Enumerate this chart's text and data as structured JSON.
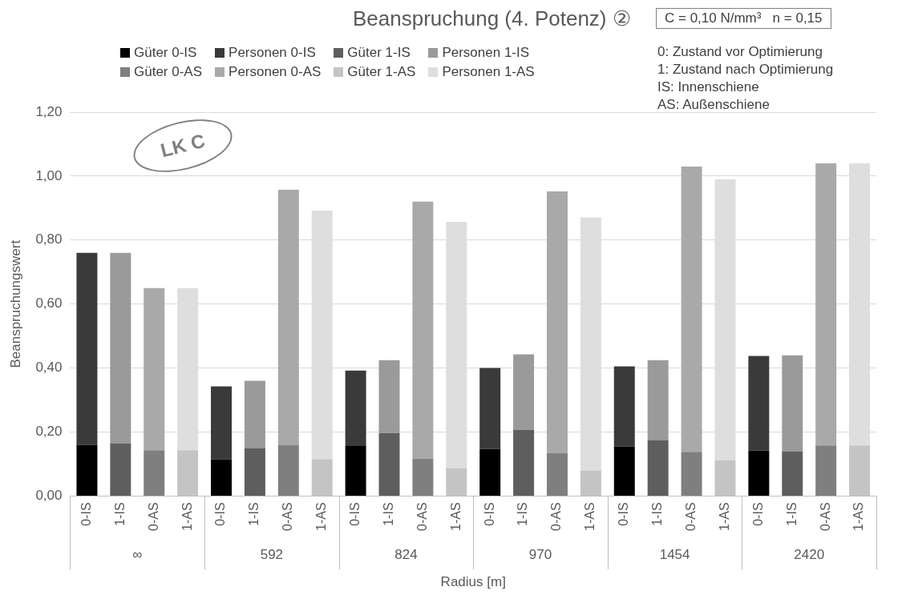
{
  "chart_data": {
    "type": "bar",
    "stacked": true,
    "title": "Beanspruchung (4. Potenz) ②",
    "xlabel": "Radius [m]",
    "ylabel": "Beanspruchungswert",
    "categories": [
      "0-IS",
      "1-IS",
      "0-AS",
      "1-AS",
      "0-IS",
      "1-IS",
      "0-AS",
      "1-AS",
      "0-IS",
      "1-IS",
      "0-AS",
      "1-AS",
      "0-IS",
      "1-IS",
      "0-AS",
      "1-AS",
      "0-IS",
      "1-IS",
      "0-AS",
      "1-AS",
      "0-IS",
      "1-IS",
      "0-AS",
      "1-AS"
    ],
    "series": [
      {
        "name": "Güter 0-IS",
        "color": "#000000",
        "values": [
          0.16,
          null,
          null,
          null,
          0.115,
          null,
          null,
          null,
          0.158,
          null,
          null,
          null,
          0.147,
          null,
          null,
          null,
          0.155,
          null,
          null,
          null,
          0.142,
          null,
          null,
          null
        ]
      },
      {
        "name": "Personen 0-IS",
        "color": "#3a3a3a",
        "values": [
          0.6,
          null,
          null,
          null,
          0.228,
          null,
          null,
          null,
          0.234,
          null,
          null,
          null,
          0.253,
          null,
          null,
          null,
          0.25,
          null,
          null,
          null,
          0.296,
          null,
          null,
          null
        ]
      },
      {
        "name": "Güter 1-IS",
        "color": "#5e5e5e",
        "values": [
          null,
          0.165,
          null,
          null,
          null,
          0.15,
          null,
          null,
          null,
          0.197,
          null,
          null,
          null,
          0.207,
          null,
          null,
          null,
          0.175,
          null,
          null,
          null,
          0.14,
          null,
          null
        ]
      },
      {
        "name": "Personen 1-IS",
        "color": "#9a9a9a",
        "values": [
          null,
          0.595,
          null,
          null,
          null,
          0.21,
          null,
          null,
          null,
          0.228,
          null,
          null,
          null,
          0.236,
          null,
          null,
          null,
          0.25,
          null,
          null,
          null,
          0.3,
          null,
          null
        ]
      },
      {
        "name": "Güter 0-AS",
        "color": "#7f7f7f",
        "values": [
          null,
          null,
          0.143,
          null,
          null,
          null,
          0.16,
          null,
          null,
          null,
          0.117,
          null,
          null,
          null,
          0.134,
          null,
          null,
          null,
          0.138,
          null,
          null,
          null,
          0.158,
          null
        ]
      },
      {
        "name": "Personen 0-AS",
        "color": "#a9a9a9",
        "values": [
          null,
          null,
          0.507,
          null,
          null,
          null,
          0.797,
          null,
          null,
          null,
          0.803,
          null,
          null,
          null,
          0.818,
          null,
          null,
          null,
          0.892,
          null,
          null,
          null,
          0.882,
          null
        ]
      },
      {
        "name": "Güter 1-AS",
        "color": "#c4c4c4",
        "values": [
          null,
          null,
          null,
          0.143,
          null,
          null,
          null,
          0.115,
          null,
          null,
          null,
          0.087,
          null,
          null,
          null,
          0.08,
          null,
          null,
          null,
          0.112,
          null,
          null,
          null,
          0.158
        ]
      },
      {
        "name": "Personen 1-AS",
        "color": "#dedede",
        "values": [
          null,
          null,
          null,
          0.507,
          null,
          null,
          null,
          0.777,
          null,
          null,
          null,
          0.77,
          null,
          null,
          null,
          0.791,
          null,
          null,
          null,
          0.878,
          null,
          null,
          null,
          0.882
        ]
      }
    ],
    "ylim": [
      0,
      1.2
    ],
    "yticks": [
      {
        "value": 0,
        "label": "0,00"
      },
      {
        "value": 0.2,
        "label": "0,20"
      },
      {
        "value": 0.4,
        "label": "0,40"
      },
      {
        "value": 0.6,
        "label": "0,60"
      },
      {
        "value": 0.8,
        "label": "0,80"
      },
      {
        "value": 1,
        "label": "1,00"
      },
      {
        "value": 1.2,
        "label": "1,20"
      }
    ],
    "grid": "y",
    "legend": "top",
    "annotations": [
      "C = 0,10 N/mm³   n = 0,15",
      "0: Zustand vor Optimierung",
      "1: Zustand nach Optimierung",
      "IS: Innenschiene",
      "AS: Außenschiene",
      "LK C",
      "∞",
      "592",
      "824",
      "970",
      "1454",
      "2420"
    ]
  }
}
